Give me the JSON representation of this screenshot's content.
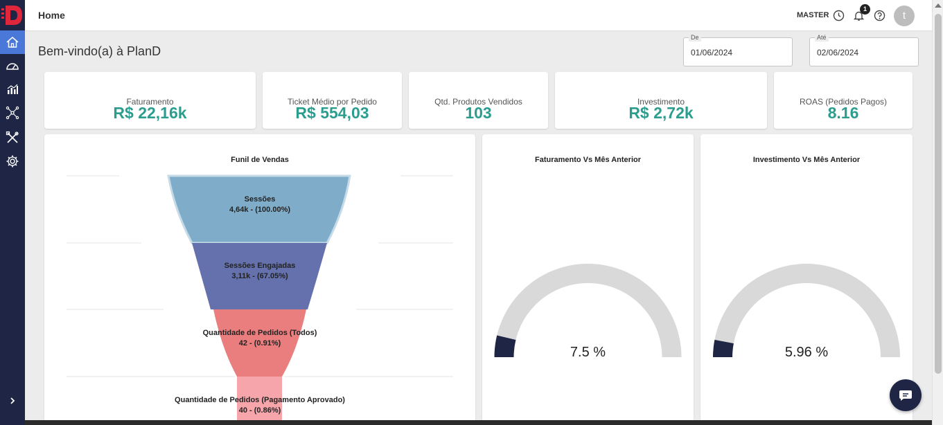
{
  "header": {
    "title": "Home",
    "user_role": "MASTER",
    "notification_count": "1",
    "avatar_initial": "t"
  },
  "welcome": "Bem-vindo(a) à PlanD",
  "dates": {
    "from_label": "De",
    "from_value": "01/06/2024",
    "to_label": "Até",
    "to_value": "02/06/2024"
  },
  "kpis": [
    {
      "label": "Faturamento",
      "value": "R$ 22,16k"
    },
    {
      "label": "Ticket Médio por Pedido",
      "value": "R$ 554,03"
    },
    {
      "label": "Qtd. Produtos Vendidos",
      "value": "103"
    },
    {
      "label": "Investimento",
      "value": "R$ 2,72k"
    },
    {
      "label": "ROAS (Pedidos Pagos)",
      "value": "8.16"
    }
  ],
  "funnel": {
    "title": "Funil de Vendas",
    "stages": [
      {
        "name": "Sessões",
        "detail": "4,64k - (100.00%)"
      },
      {
        "name": "Sessões Engajadas",
        "detail": "3,11k - (67.05%)"
      },
      {
        "name": "Quantidade de Pedidos (Todos)",
        "detail": "42 - (0.91%)"
      },
      {
        "name": "Quantidade de Pedidos (Pagamento Aprovado)",
        "detail": "40 - (0.86%)"
      }
    ]
  },
  "gauges": [
    {
      "title": "Faturamento Vs Mês Anterior",
      "value_text": "7.5 %",
      "value": 7.5
    },
    {
      "title": "Investimento Vs Mês Anterior",
      "value_text": "5.96 %",
      "value": 5.96
    }
  ],
  "colors": {
    "sidebar": "#1f2645",
    "accent": "#2a9d8f",
    "stage1": "#7fadc9",
    "stage2": "#6471ad",
    "stage3": "#ea7e7e",
    "stage4": "#f6a5ab",
    "gauge_fill": "#1f2645",
    "gauge_track": "#d9d9d9"
  }
}
